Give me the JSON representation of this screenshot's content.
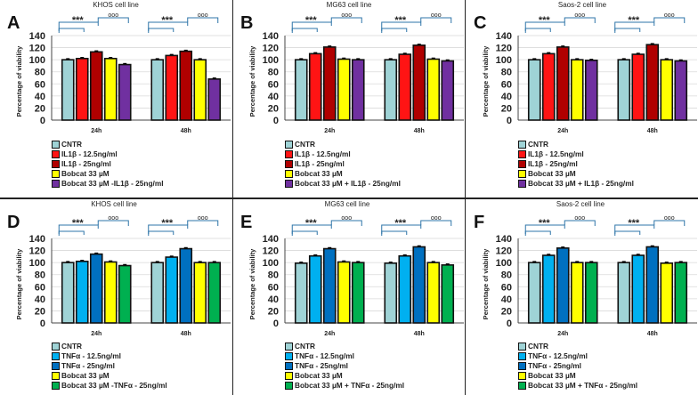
{
  "chart_data": [
    {
      "label": "A",
      "title": "KHOS cell line",
      "type": "bar",
      "ylabel": "Percentage of viability",
      "ylim": [
        0,
        140
      ],
      "yticks": [
        "0",
        "20",
        "40",
        "60",
        "80",
        "100",
        "120",
        "140"
      ],
      "categories": [
        "24h",
        "48h"
      ],
      "annotations": [
        "***",
        "ooo"
      ],
      "series": [
        {
          "name": "CNTR",
          "color": "#9fd3d6",
          "values": [
            100,
            100
          ]
        },
        {
          "name": "IL1β - 12.5ng/ml",
          "color": "#ff1414",
          "values": [
            102,
            107
          ]
        },
        {
          "name": "IL1β - 25ng/ml",
          "color": "#b00000",
          "values": [
            113,
            114
          ]
        },
        {
          "name": "Bobcat 33 µM",
          "color": "#ffff00",
          "values": [
            102,
            100
          ]
        },
        {
          "name": "Bobcat 33 µM -IL1β - 25ng/ml",
          "color": "#7030a0",
          "values": [
            92,
            68
          ]
        }
      ]
    },
    {
      "label": "B",
      "title": "MG63 cell line",
      "type": "bar",
      "ylabel": "Percentage of viability",
      "ylim": [
        0,
        140
      ],
      "yticks": [
        "0",
        "20",
        "40",
        "60",
        "80",
        "100",
        "120",
        "140"
      ],
      "categories": [
        "24h",
        "48h"
      ],
      "annotations": [
        "***",
        "ooo"
      ],
      "series": [
        {
          "name": "CNTR",
          "color": "#9fd3d6",
          "values": [
            100,
            100
          ]
        },
        {
          "name": "IL1β - 12.5ng/ml",
          "color": "#ff1414",
          "values": [
            110,
            109
          ]
        },
        {
          "name": "IL1β - 25ng/ml",
          "color": "#b00000",
          "values": [
            121,
            124
          ]
        },
        {
          "name": "Bobcat 33 µM",
          "color": "#ffff00",
          "values": [
            101,
            101
          ]
        },
        {
          "name": "Bobcat 33 µM + IL1β - 25ng/ml",
          "color": "#7030a0",
          "values": [
            100,
            98
          ]
        }
      ]
    },
    {
      "label": "C",
      "title": "Saos-2 cell line",
      "type": "bar",
      "ylabel": "Percentage of viability",
      "ylim": [
        0,
        140
      ],
      "yticks": [
        "0",
        "20",
        "40",
        "60",
        "80",
        "100",
        "120",
        "140"
      ],
      "categories": [
        "24h",
        "48h"
      ],
      "annotations": [
        "***",
        "ooo"
      ],
      "series": [
        {
          "name": "CNTR",
          "color": "#9fd3d6",
          "values": [
            100,
            100
          ]
        },
        {
          "name": "IL1β - 12.5ng/ml",
          "color": "#ff1414",
          "values": [
            110,
            109
          ]
        },
        {
          "name": "IL1β - 25ng/ml",
          "color": "#b00000",
          "values": [
            121,
            125
          ]
        },
        {
          "name": "Bobcat 33 µM",
          "color": "#ffff00",
          "values": [
            100,
            100
          ]
        },
        {
          "name": "Bobcat 33 µM + IL1β - 25ng/ml",
          "color": "#7030a0",
          "values": [
            99,
            98
          ]
        }
      ]
    },
    {
      "label": "D",
      "title": "KHOS cell line",
      "type": "bar",
      "ylabel": "Percentage of viability",
      "ylim": [
        0,
        140
      ],
      "yticks": [
        "0",
        "20",
        "40",
        "60",
        "80",
        "100",
        "120",
        "140"
      ],
      "categories": [
        "24h",
        "48h"
      ],
      "annotations": [
        "***",
        "ooo"
      ],
      "series": [
        {
          "name": "CNTR",
          "color": "#9fd3d6",
          "values": [
            100,
            100
          ]
        },
        {
          "name": "TNFα - 12.5ng/ml",
          "color": "#00b0f0",
          "values": [
            102,
            109
          ]
        },
        {
          "name": "TNFα - 25ng/ml",
          "color": "#0070c0",
          "values": [
            114,
            123
          ]
        },
        {
          "name": "Bobcat 33 µM",
          "color": "#ffff00",
          "values": [
            101,
            100
          ]
        },
        {
          "name": "Bobcat 33 µM -TNFα - 25ng/ml",
          "color": "#00b050",
          "values": [
            95,
            100
          ]
        }
      ]
    },
    {
      "label": "E",
      "title": "MG63 cell line",
      "type": "bar",
      "ylabel": "Percentage of viability",
      "ylim": [
        0,
        140
      ],
      "yticks": [
        "0",
        "20",
        "40",
        "60",
        "80",
        "100",
        "120",
        "140"
      ],
      "categories": [
        "24h",
        "48h"
      ],
      "annotations": [
        "***",
        "ooo"
      ],
      "series": [
        {
          "name": "CNTR",
          "color": "#9fd3d6",
          "values": [
            99,
            99
          ]
        },
        {
          "name": "TNFα - 12.5ng/ml",
          "color": "#00b0f0",
          "values": [
            111,
            111
          ]
        },
        {
          "name": "TNFα - 25ng/ml",
          "color": "#0070c0",
          "values": [
            123,
            126
          ]
        },
        {
          "name": "Bobcat 33 µM",
          "color": "#ffff00",
          "values": [
            101,
            100
          ]
        },
        {
          "name": "Bobcat 33 µM + TNFα - 25ng/ml",
          "color": "#00b050",
          "values": [
            100,
            96
          ]
        }
      ]
    },
    {
      "label": "F",
      "title": "Saos-2 cell line",
      "type": "bar",
      "ylabel": "Percentage of viability",
      "ylim": [
        0,
        140
      ],
      "yticks": [
        "0",
        "20",
        "40",
        "60",
        "80",
        "100",
        "120",
        "140"
      ],
      "categories": [
        "24h",
        "48h"
      ],
      "annotations": [
        "***",
        "ooo"
      ],
      "series": [
        {
          "name": "CNTR",
          "color": "#9fd3d6",
          "values": [
            100,
            100
          ]
        },
        {
          "name": "TNFα - 12.5ng/ml",
          "color": "#00b0f0",
          "values": [
            112,
            112
          ]
        },
        {
          "name": "TNFα - 25ng/ml",
          "color": "#0070c0",
          "values": [
            124,
            126
          ]
        },
        {
          "name": "Bobcat 33 µM",
          "color": "#ffff00",
          "values": [
            100,
            99
          ]
        },
        {
          "name": "Bobcat 33 µM + TNFα - 25ng/ml",
          "color": "#00b050",
          "values": [
            100,
            100
          ]
        }
      ]
    }
  ]
}
